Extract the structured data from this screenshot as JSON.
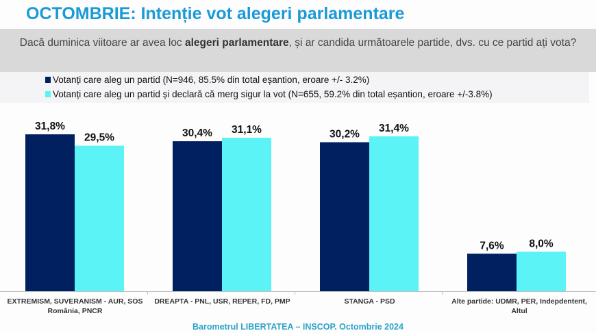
{
  "title": "OCTOMBRIE: Intenție vot alegeri parlamentare",
  "question": {
    "part1": "Dacă duminica viitoare ar avea loc ",
    "bold": "alegeri parlamentare",
    "part2": ", și ar candida următoarele partide, dvs. cu ce partid ați vota?"
  },
  "footer": "Barometrul LIBERTATEA – INSCOP. Octombrie 2024",
  "chart_data": {
    "type": "bar",
    "categories": [
      "EXTREMISM, SUVERANISM - AUR, SOS România, PNCR",
      "DREAPTA - PNL, USR, REPER, FD, PMP",
      "STANGA - PSD",
      "Alte partide: UDMR, PER, Indepdentent, Altul"
    ],
    "series": [
      {
        "name": "Votanți care aleg un partid (N=946, 85.5% din total eșantion, eroare +/- 3.2%)",
        "color": "#002060",
        "values": [
          31.8,
          30.4,
          30.2,
          7.6
        ],
        "labels": [
          "31,8%",
          "30,4%",
          "30,2%",
          "7,6%"
        ]
      },
      {
        "name": "Votanți care aleg un partid și declară că merg sigur la vot (N=655, 59.2% din total eșantion, eroare +/-3.8%)",
        "color": "#5cf3f7",
        "values": [
          29.5,
          31.1,
          31.4,
          8.0
        ],
        "labels": [
          "29,5%",
          "31,1%",
          "31,4%",
          "8,0%"
        ]
      }
    ],
    "ylim": [
      0,
      35
    ],
    "grid": false,
    "legend": "top-left"
  }
}
